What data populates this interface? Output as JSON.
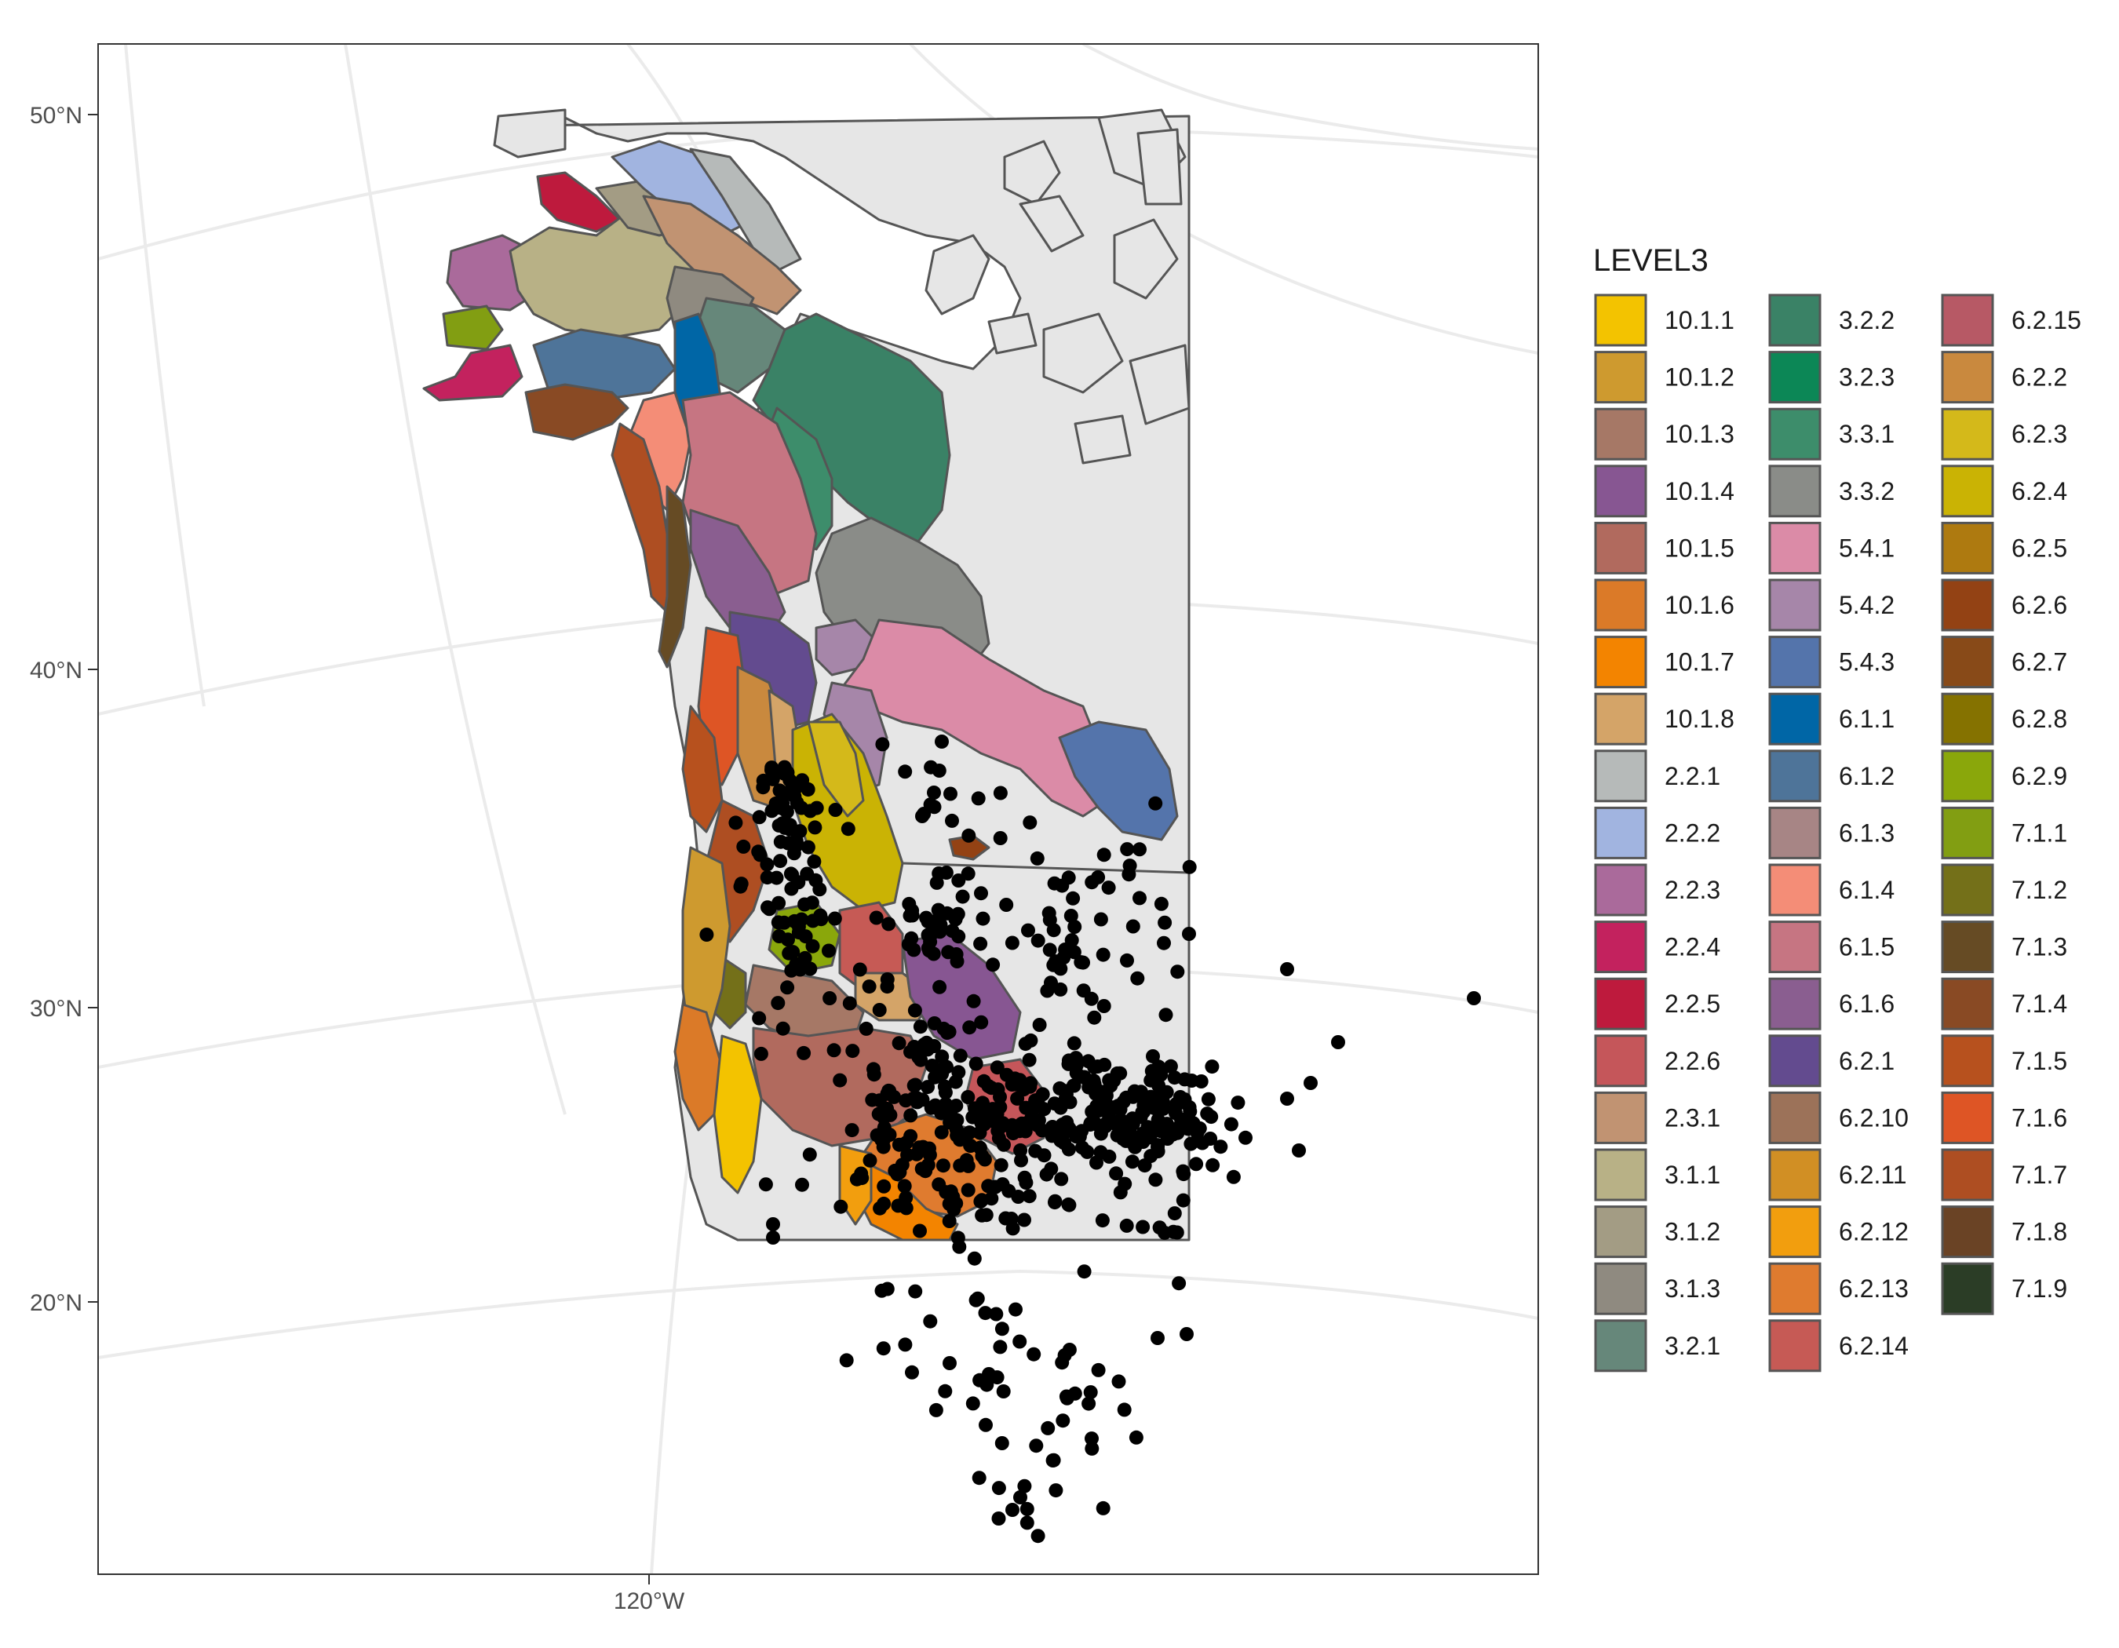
{
  "legend": {
    "title": "LEVEL3",
    "items": [
      {
        "label": "10.1.1",
        "color": "#F3C300"
      },
      {
        "label": "10.1.2",
        "color": "#CE9A2F"
      },
      {
        "label": "10.1.3",
        "color": "#A67866"
      },
      {
        "label": "10.1.4",
        "color": "#875692"
      },
      {
        "label": "10.1.5",
        "color": "#B16A5E"
      },
      {
        "label": "10.1.6",
        "color": "#DB7A28"
      },
      {
        "label": "10.1.7",
        "color": "#F38400"
      },
      {
        "label": "10.1.8",
        "color": "#D4A468"
      },
      {
        "label": "2.2.1",
        "color": "#B6BAB9"
      },
      {
        "label": "2.2.2",
        "color": "#A1B4E0"
      },
      {
        "label": "2.2.3",
        "color": "#AA6A9B"
      },
      {
        "label": "2.2.4",
        "color": "#C3225E"
      },
      {
        "label": "2.2.5",
        "color": "#BE1A3D"
      },
      {
        "label": "2.2.6",
        "color": "#C5565A"
      },
      {
        "label": "2.3.1",
        "color": "#C19372"
      },
      {
        "label": "3.1.1",
        "color": "#B8B186"
      },
      {
        "label": "3.1.2",
        "color": "#A39C84"
      },
      {
        "label": "3.1.3",
        "color": "#8F8A80"
      },
      {
        "label": "3.2.1",
        "color": "#66877A"
      },
      {
        "label": "3.2.2",
        "color": "#3A8266"
      },
      {
        "label": "3.2.3",
        "color": "#0C8756"
      },
      {
        "label": "3.3.1",
        "color": "#3D8D6B"
      },
      {
        "label": "3.3.2",
        "color": "#8A8C88"
      },
      {
        "label": "5.4.1",
        "color": "#DB8BA7"
      },
      {
        "label": "5.4.2",
        "color": "#A686A9"
      },
      {
        "label": "5.4.3",
        "color": "#5474AB"
      },
      {
        "label": "6.1.1",
        "color": "#0066A6"
      },
      {
        "label": "6.1.2",
        "color": "#4E7499"
      },
      {
        "label": "6.1.3",
        "color": "#A78585"
      },
      {
        "label": "6.1.4",
        "color": "#F48D77"
      },
      {
        "label": "6.1.5",
        "color": "#C67582"
      },
      {
        "label": "6.1.6",
        "color": "#8A5E90"
      },
      {
        "label": "6.2.1",
        "color": "#634B8F"
      },
      {
        "label": "6.2.10",
        "color": "#9C7259"
      },
      {
        "label": "6.2.11",
        "color": "#D18F24"
      },
      {
        "label": "6.2.12",
        "color": "#F29E0E"
      },
      {
        "label": "6.2.13",
        "color": "#DF7B2F"
      },
      {
        "label": "6.2.14",
        "color": "#C65A55"
      },
      {
        "label": "6.2.15",
        "color": "#B75965"
      },
      {
        "label": "6.2.2",
        "color": "#C9893E"
      },
      {
        "label": "6.2.3",
        "color": "#D4B91A"
      },
      {
        "label": "6.2.4",
        "color": "#CAB304"
      },
      {
        "label": "6.2.5",
        "color": "#AE7A10"
      },
      {
        "label": "6.2.6",
        "color": "#934214"
      },
      {
        "label": "6.2.7",
        "color": "#884A18"
      },
      {
        "label": "6.2.8",
        "color": "#857200"
      },
      {
        "label": "6.2.9",
        "color": "#8AA70B"
      },
      {
        "label": "7.1.1",
        "color": "#829E12"
      },
      {
        "label": "7.1.2",
        "color": "#747019"
      },
      {
        "label": "7.1.3",
        "color": "#664B24"
      },
      {
        "label": "7.1.4",
        "color": "#894A24"
      },
      {
        "label": "7.1.5",
        "color": "#B7511E"
      },
      {
        "label": "7.1.6",
        "color": "#DE5525"
      },
      {
        "label": "7.1.7",
        "color": "#AE4E22"
      },
      {
        "label": "7.1.8",
        "color": "#6A4325"
      },
      {
        "label": "7.1.9",
        "color": "#2B3D26"
      }
    ]
  },
  "axes": {
    "y_ticks": [
      "50°N",
      "40°N",
      "30°N",
      "20°N"
    ],
    "x_ticks": [
      "120°W"
    ]
  },
  "colors": {
    "land": "#e6e6e6",
    "border": "#555555",
    "points": "#000000",
    "panel_border": "#333333",
    "graticule": "#ebebeb"
  }
}
